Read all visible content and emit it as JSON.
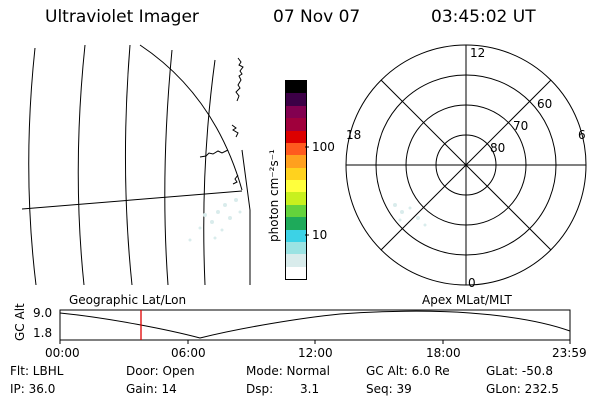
{
  "header": {
    "title": "Ultraviolet Imager",
    "date": "07 Nov 07",
    "time": "03:45:02 UT"
  },
  "colorbar": {
    "label": "photon cm⁻²s⁻¹",
    "ticks": [
      "100",
      "10"
    ],
    "colors": [
      "#ffffff",
      "#d9ecec",
      "#9be3e3",
      "#3cd2e6",
      "#1eaa5a",
      "#64d23c",
      "#c8f01e",
      "#ffff3c",
      "#ffd21e",
      "#ffa01e",
      "#ff5a1e",
      "#dc0000",
      "#a0003c",
      "#820050",
      "#3c0046",
      "#000000"
    ]
  },
  "polar": {
    "mlt_labels": [
      "12",
      "18",
      "6",
      "0"
    ],
    "lat_labels": [
      "60",
      "70",
      "80"
    ]
  },
  "timeline": {
    "axis_label": "GC Alt",
    "y_ticks": [
      "9.0",
      "1.8"
    ],
    "left_title": "Geographic Lat/Lon",
    "right_title": "Apex MLat/MLT",
    "x_ticks": [
      "00:00",
      "06:00",
      "12:00",
      "18:00",
      "23:59"
    ],
    "marker_time": "03:45",
    "marker_color": "#e00000"
  },
  "info": {
    "flt": "Flt: LBHL",
    "ip": "IP: 36.0",
    "door": "Door: Open",
    "gain": "Gain: 14",
    "mode": "Mode: Normal",
    "dsp_label": "Dsp:",
    "dsp_value": "3.1",
    "gcalt": "GC Alt: 6.0 Re",
    "seq": "Seq: 39",
    "glat": "GLat: -50.8",
    "glon": "GLon: 232.5"
  }
}
